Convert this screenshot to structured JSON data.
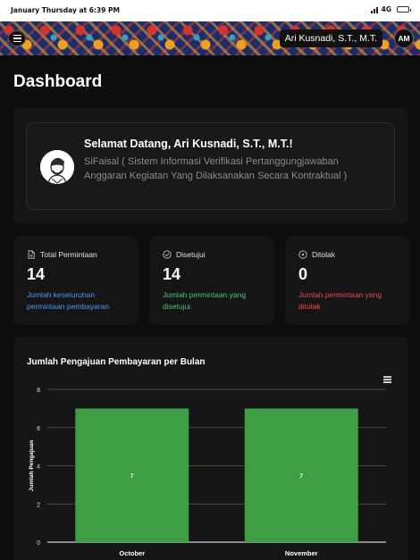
{
  "status_bar": {
    "time": "January Thursday at 6:39 PM",
    "network": "4G"
  },
  "header": {
    "menu_icon": "hamburger-icon",
    "user_name": "Ari Kusnadi, S.T., M.T.",
    "avatar_initials": "AM"
  },
  "page": {
    "title": "Dashboard"
  },
  "welcome": {
    "heading": "Selamat Datang, Ari Kusnadi, S.T., M.T.!",
    "subtitle": "SiFaisal ( Sistem Informasi Verifikasi Pertanggungjawaban Anggaran Kegiatan Yang Dilaksanakan Secara Kontraktual )"
  },
  "stats": [
    {
      "label": "Total Permintaan",
      "value": "14",
      "description": "Jumlah keseluruhan permintaan pembayaran",
      "color": "#4c9bf5",
      "icon": "document-icon"
    },
    {
      "label": "Disetujui",
      "value": "14",
      "description": "Jumlah permintaan yang disetujui",
      "color": "#4cc46a",
      "icon": "check-circle-icon"
    },
    {
      "label": "Ditolak",
      "value": "0",
      "description": "Jumlah permintaan yang ditolak",
      "color": "#ef4a4a",
      "icon": "x-circle-icon"
    }
  ],
  "chart_data": {
    "type": "bar",
    "title": "Jumlah Pengajuan Pembayaran per Bulan",
    "categories": [
      "October",
      "November"
    ],
    "values": [
      7,
      7
    ],
    "ylabel": "Jumlah Pengajuan",
    "xlabel": "",
    "ylim": [
      0,
      8
    ],
    "yticks": [
      0,
      2,
      4,
      6,
      8
    ],
    "bar_color": "#3e9e44",
    "grid": true,
    "data_labels": [
      "7",
      "7"
    ]
  }
}
